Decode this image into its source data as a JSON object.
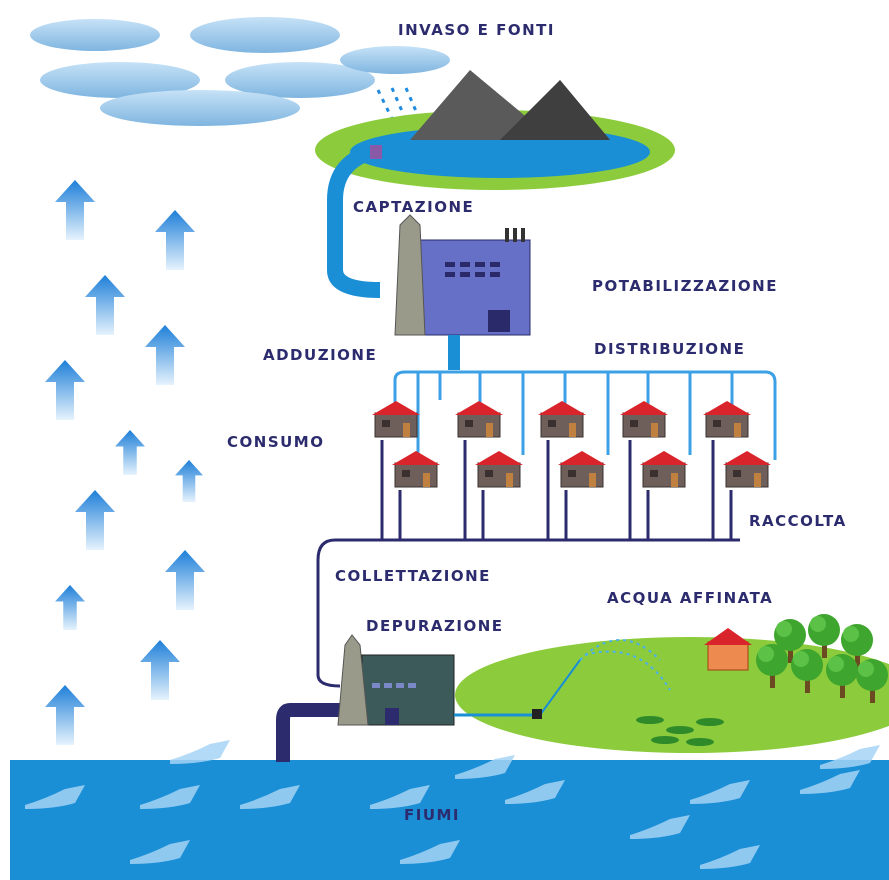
{
  "title": "INVASO E FONTI",
  "labels": [
    {
      "text": "CAPTAZIONE"
    },
    {
      "text": "POTABILIZZAZIONE"
    },
    {
      "text": "ADDUZIONE"
    },
    {
      "text": "DISTRIBUZIONE"
    },
    {
      "text": "CONSUMO"
    },
    {
      "text": "RACCOLTA"
    },
    {
      "text": "COLLETTAZIONE"
    },
    {
      "text": "ACQUA AFFINATA"
    },
    {
      "text": "DEPURAZIONE"
    },
    {
      "text": "FIUMI"
    }
  ]
}
